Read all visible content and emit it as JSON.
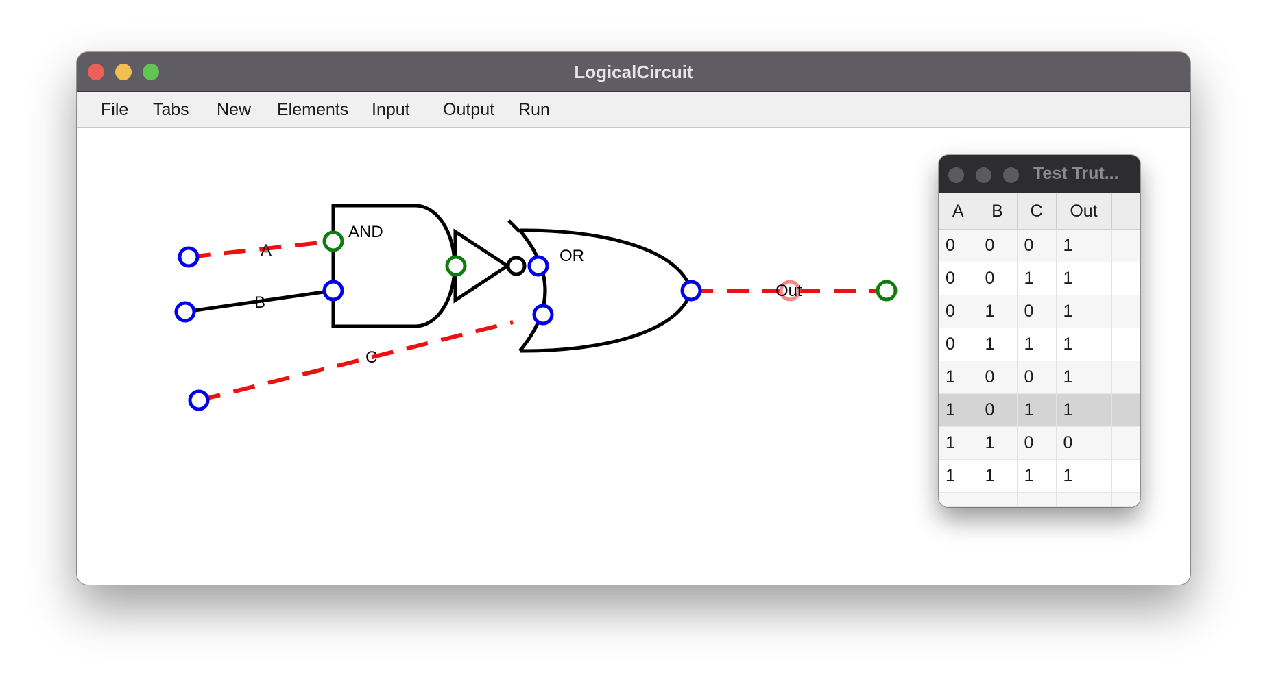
{
  "window": {
    "title": "LogicalCircuit"
  },
  "menu": [
    "File",
    "Tabs",
    "New",
    "Elements",
    "Input",
    "Output",
    "Run"
  ],
  "circuit": {
    "wire_labels": {
      "a": "A",
      "b": "B",
      "c": "C",
      "out": "Out"
    },
    "gate_labels": {
      "and": "AND",
      "or": "OR"
    },
    "colors": {
      "input_pin": "#0000ee",
      "output_pin": "#107c10",
      "active_wire": "#ee1111",
      "inactive_wire": "#000000"
    }
  },
  "truth_table": {
    "title": "Test Trut...",
    "headers": [
      "A",
      "B",
      "C",
      "Out"
    ],
    "rows": [
      [
        "0",
        "0",
        "0",
        "1"
      ],
      [
        "0",
        "0",
        "1",
        "1"
      ],
      [
        "0",
        "1",
        "0",
        "1"
      ],
      [
        "0",
        "1",
        "1",
        "1"
      ],
      [
        "1",
        "0",
        "0",
        "1"
      ],
      [
        "1",
        "0",
        "1",
        "1"
      ],
      [
        "1",
        "1",
        "0",
        "0"
      ],
      [
        "1",
        "1",
        "1",
        "1"
      ]
    ],
    "selected_row": 5
  }
}
